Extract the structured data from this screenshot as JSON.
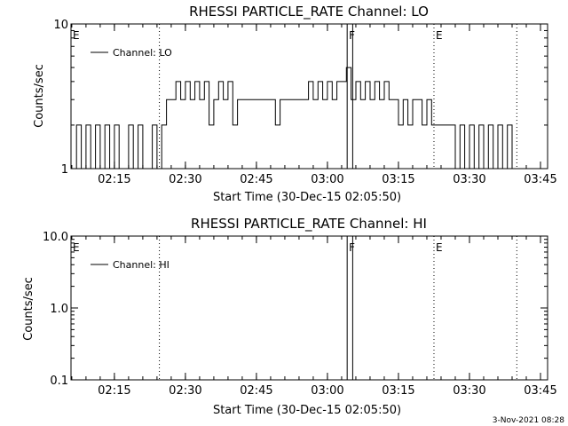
{
  "footer_date": "3-Nov-2021 08:28",
  "chart_data": [
    {
      "type": "line",
      "title": "RHESSI PARTICLE_RATE Channel: LO",
      "xlabel": "Start Time (30-Dec-15 02:05:50)",
      "ylabel": "Counts/sec",
      "yscale": "log",
      "ylim": [
        1,
        10
      ],
      "ytick_labels": [
        "1",
        "10"
      ],
      "xlim": [
        "02:05:50",
        "03:46:30"
      ],
      "xtick_labels": [
        "02:15",
        "02:30",
        "02:45",
        "03:00",
        "03:15",
        "03:30",
        "03:45"
      ],
      "legend": {
        "label": "Channel: LO",
        "position": "top-left"
      },
      "markers": [
        {
          "label": "E",
          "time": "02:05:50",
          "style": "dotted"
        },
        {
          "label": "",
          "time": "02:24:30",
          "style": "dotted"
        },
        {
          "label": "F",
          "time": "03:04:10",
          "style": "solid"
        },
        {
          "label": "",
          "time": "03:05:20",
          "style": "solid"
        },
        {
          "label": "E",
          "time": "03:22:30",
          "style": "dotted"
        },
        {
          "label": "",
          "time": "03:40:00",
          "style": "dotted"
        }
      ],
      "series": [
        {
          "name": "Channel: LO",
          "x": [
            "02:06:00",
            "02:07:00",
            "02:08:00",
            "02:09:00",
            "02:10:00",
            "02:11:00",
            "02:12:00",
            "02:13:00",
            "02:14:00",
            "02:15:00",
            "02:16:00",
            "02:17:00",
            "02:18:00",
            "02:19:00",
            "02:20:00",
            "02:21:00",
            "02:22:00",
            "02:23:00",
            "02:24:00",
            "02:25:00",
            "02:26:00",
            "02:27:00",
            "02:28:00",
            "02:29:00",
            "02:30:00",
            "02:31:00",
            "02:32:00",
            "02:33:00",
            "02:34:00",
            "02:35:00",
            "02:36:00",
            "02:37:00",
            "02:38:00",
            "02:39:00",
            "02:40:00",
            "02:41:00",
            "02:42:00",
            "02:43:00",
            "02:44:00",
            "02:45:00",
            "02:46:00",
            "02:47:00",
            "02:48:00",
            "02:49:00",
            "02:50:00",
            "02:51:00",
            "02:52:00",
            "02:53:00",
            "02:54:00",
            "02:55:00",
            "02:56:00",
            "02:57:00",
            "02:58:00",
            "02:59:00",
            "03:00:00",
            "03:01:00",
            "03:02:00",
            "03:03:00",
            "03:04:00",
            "03:05:00",
            "03:06:00",
            "03:07:00",
            "03:08:00",
            "03:09:00",
            "03:10:00",
            "03:11:00",
            "03:12:00",
            "03:13:00",
            "03:14:00",
            "03:15:00",
            "03:16:00",
            "03:17:00",
            "03:18:00",
            "03:19:00",
            "03:20:00",
            "03:21:00",
            "03:22:00",
            "03:23:00",
            "03:24:00",
            "03:25:00",
            "03:26:00",
            "03:27:00",
            "03:28:00",
            "03:29:00",
            "03:30:00",
            "03:31:00",
            "03:32:00",
            "03:33:00",
            "03:34:00",
            "03:35:00",
            "03:36:00",
            "03:37:00",
            "03:38:00",
            "03:39:00",
            "03:40:00"
          ],
          "values": [
            1,
            2,
            1,
            2,
            1,
            2,
            1,
            2,
            1,
            2,
            1,
            1,
            2,
            1,
            2,
            1,
            1,
            2,
            1,
            2,
            3,
            3,
            4,
            3,
            4,
            3,
            4,
            3,
            4,
            2,
            3,
            4,
            3,
            4,
            2,
            3,
            3,
            3,
            3,
            3,
            3,
            3,
            3,
            2,
            3,
            3,
            3,
            3,
            3,
            3,
            4,
            3,
            4,
            3,
            4,
            3,
            4,
            4,
            5,
            3,
            4,
            3,
            4,
            3,
            4,
            3,
            4,
            3,
            3,
            2,
            3,
            2,
            3,
            3,
            2,
            3,
            2,
            2,
            2,
            2,
            2,
            1,
            2,
            1,
            2,
            1,
            2,
            1,
            2,
            1,
            2,
            1,
            2,
            1,
            1
          ]
        }
      ]
    },
    {
      "type": "line",
      "title": "RHESSI PARTICLE_RATE Channel: HI",
      "xlabel": "Start Time (30-Dec-15 02:05:50)",
      "ylabel": "Counts/sec",
      "yscale": "log",
      "ylim": [
        0.1,
        10
      ],
      "ytick_labels": [
        "0.1",
        "1.0",
        "10.0"
      ],
      "xlim": [
        "02:05:50",
        "03:46:30"
      ],
      "xtick_labels": [
        "02:15",
        "02:30",
        "02:45",
        "03:00",
        "03:15",
        "03:30",
        "03:45"
      ],
      "legend": {
        "label": "Channel: HI",
        "position": "top-left"
      },
      "markers": [
        {
          "label": "E",
          "time": "02:05:50",
          "style": "dotted"
        },
        {
          "label": "",
          "time": "02:24:30",
          "style": "dotted"
        },
        {
          "label": "F",
          "time": "03:04:10",
          "style": "solid"
        },
        {
          "label": "",
          "time": "03:05:20",
          "style": "solid"
        },
        {
          "label": "E",
          "time": "03:22:30",
          "style": "dotted"
        },
        {
          "label": "",
          "time": "03:40:00",
          "style": "dotted"
        }
      ],
      "series": [
        {
          "name": "Channel: HI",
          "x": [],
          "values": []
        }
      ]
    }
  ]
}
